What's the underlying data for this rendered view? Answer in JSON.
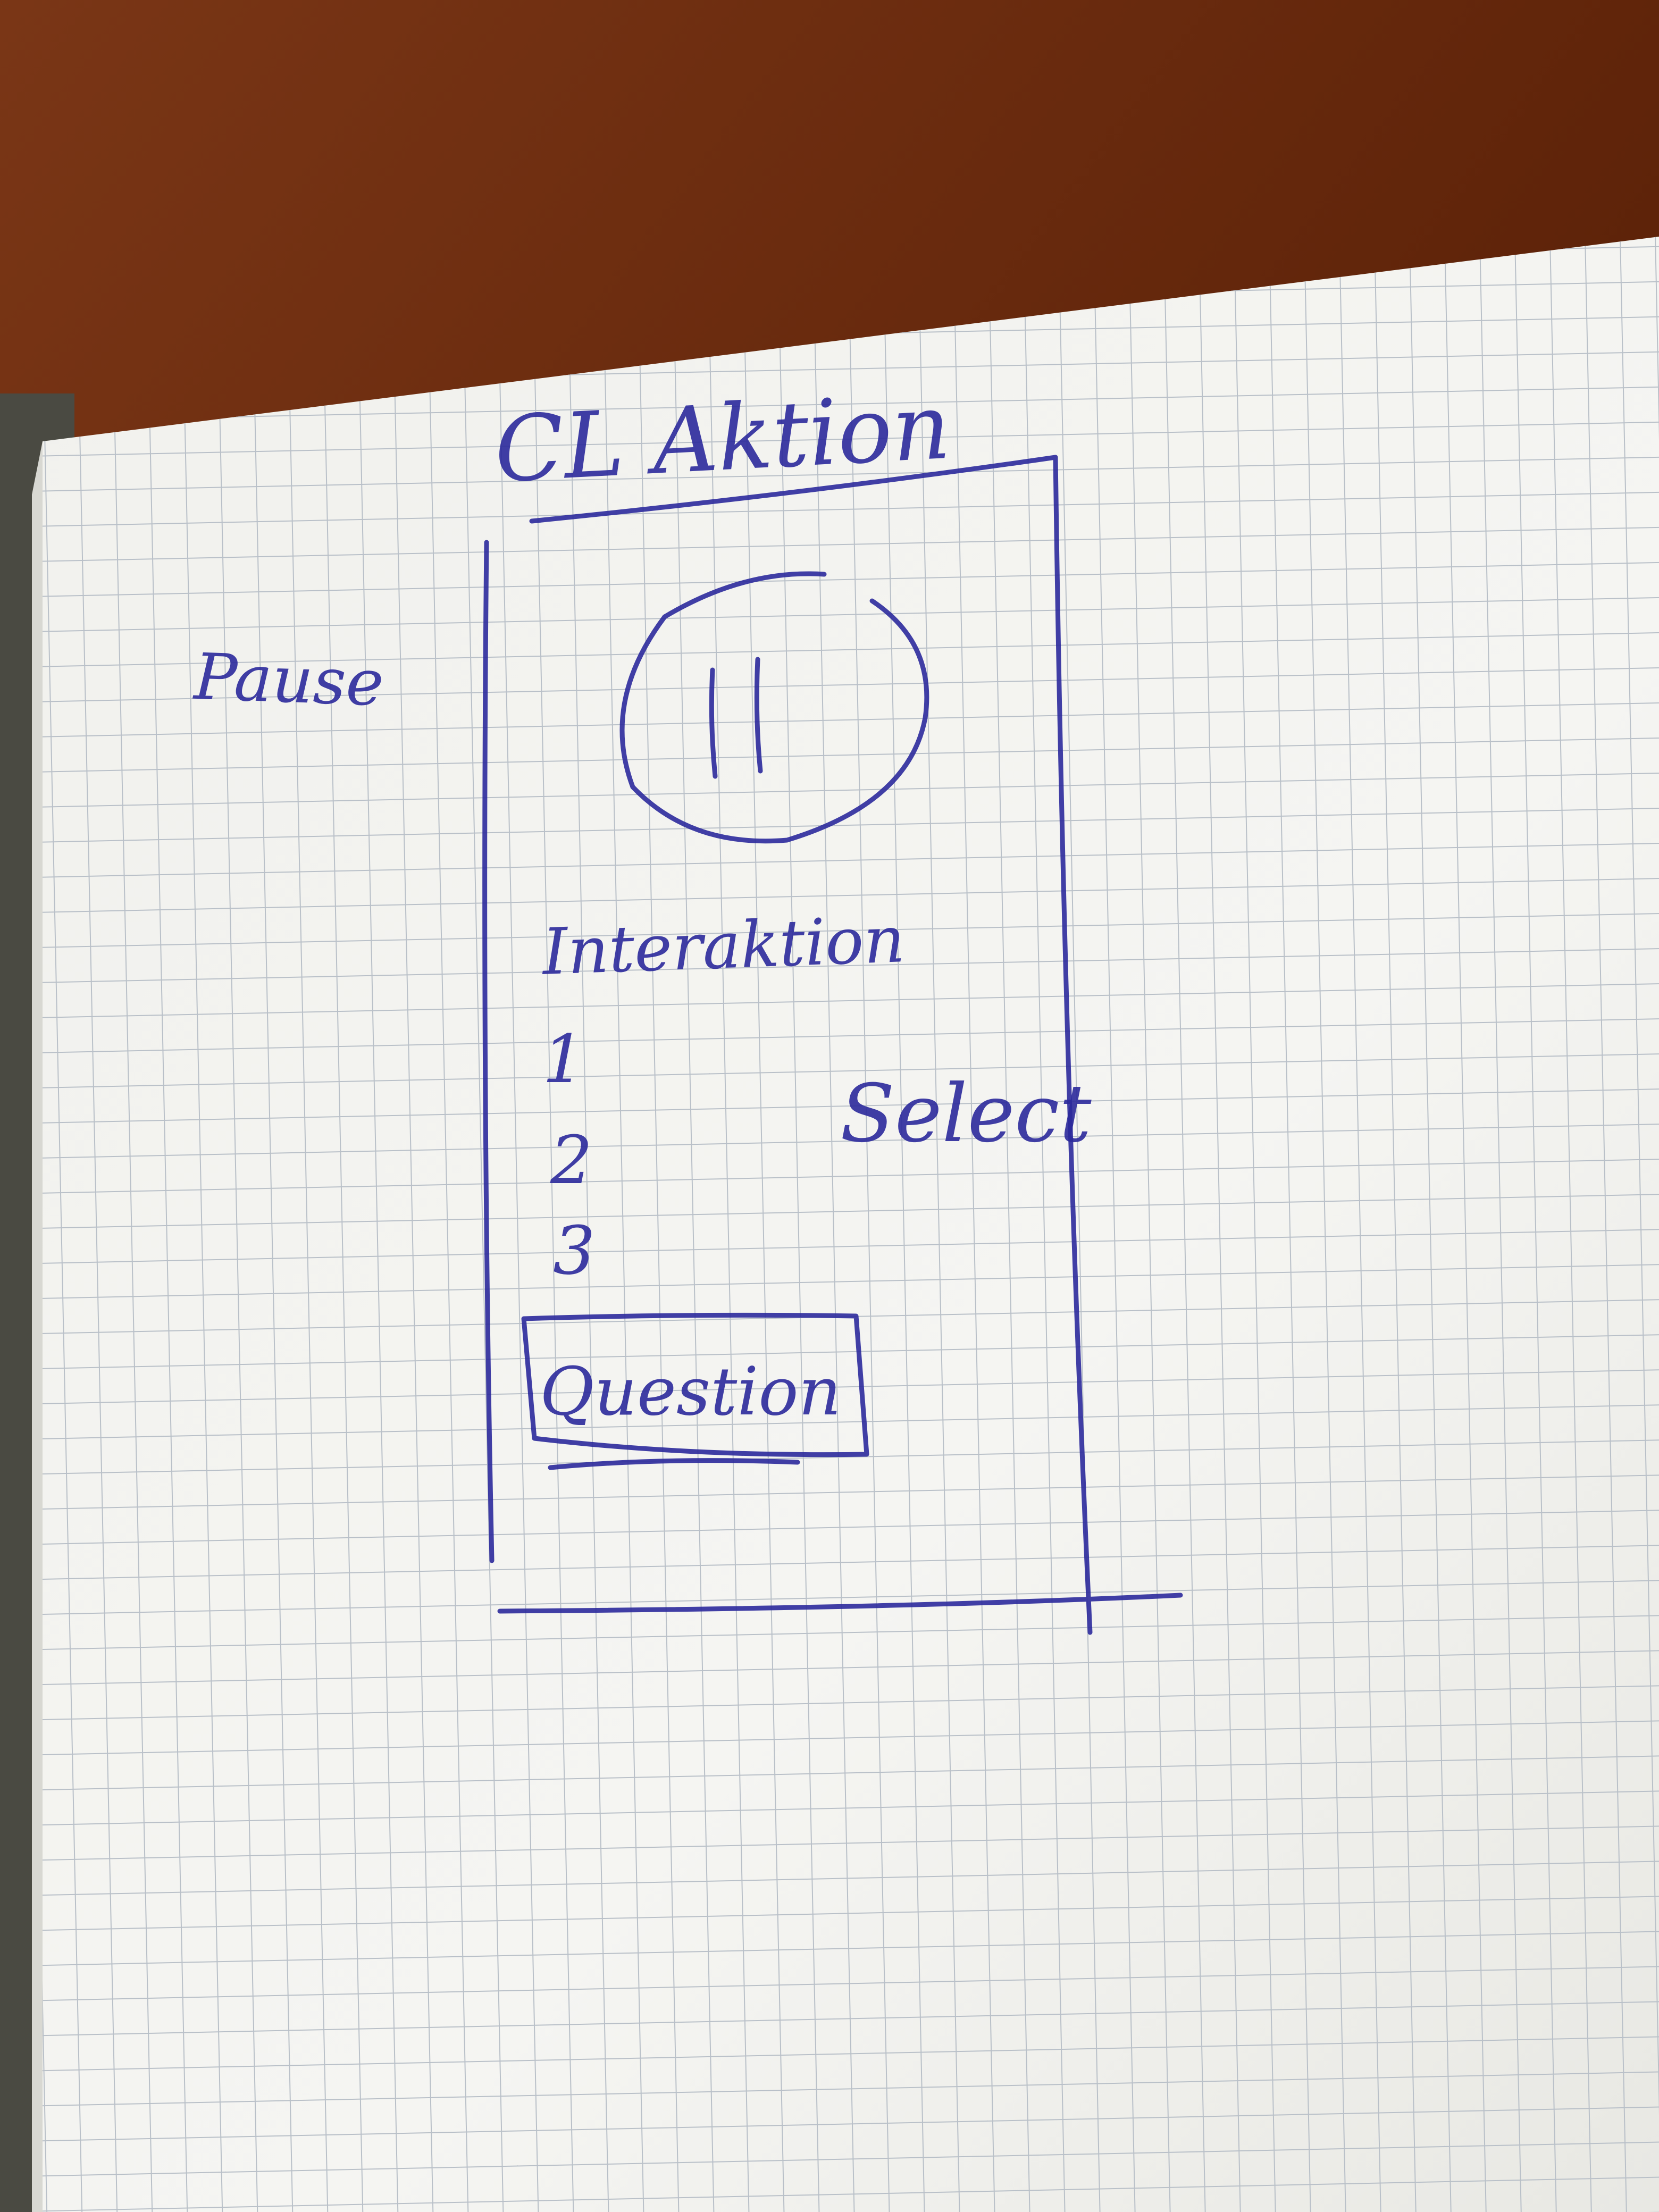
{
  "sketch": {
    "title": "CL Aktion",
    "side_label": "Pause",
    "interaction_label": "Interaktion",
    "options": [
      "1",
      "2",
      "3"
    ],
    "select_label": "Select",
    "question_label": "Question"
  },
  "colors": {
    "ink": "#2c2a9c",
    "paper": "#f4f4f1",
    "grid": "#b9c0c8",
    "table": "#6b2a10"
  },
  "icons": {
    "pause": "pause-icon"
  }
}
